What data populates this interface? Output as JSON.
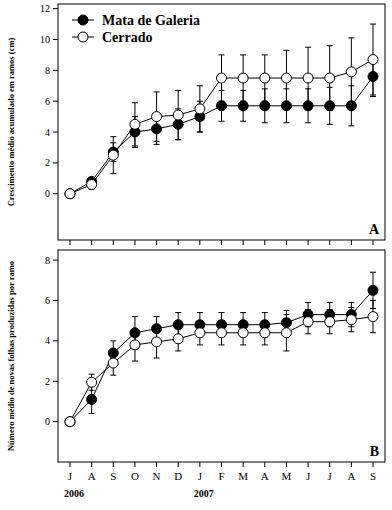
{
  "chart_data": [
    {
      "type": "line",
      "y_label": "Crescimento médio acumulado em ramos (cm)",
      "panel_label": "A",
      "categories": [
        "J",
        "A",
        "S",
        "O",
        "N",
        "D",
        "J",
        "F",
        "M",
        "A",
        "M",
        "J",
        "J",
        "A",
        "S"
      ],
      "series": [
        {
          "name": "Mata de Galeria",
          "color": "#000000",
          "marker": "circle",
          "values": [
            0,
            0.8,
            2.7,
            4.0,
            4.2,
            4.5,
            5.0,
            5.7,
            5.7,
            5.7,
            5.7,
            5.7,
            5.7,
            5.7,
            7.6
          ],
          "errors": [
            0,
            0.2,
            0.6,
            1.0,
            1.0,
            1.0,
            1.0,
            1.0,
            1.0,
            1.1,
            1.1,
            1.1,
            1.2,
            1.3,
            1.3
          ]
        },
        {
          "name": "Cerrado",
          "color": "#ffffff",
          "marker": "circle",
          "values": [
            0,
            0.6,
            2.5,
            4.5,
            5.0,
            5.1,
            5.5,
            7.5,
            7.5,
            7.5,
            7.5,
            7.5,
            7.5,
            7.9,
            8.7
          ],
          "errors": [
            0,
            0.3,
            1.2,
            1.4,
            1.6,
            1.6,
            1.5,
            1.5,
            1.5,
            1.5,
            1.8,
            2.0,
            2.1,
            2.2,
            2.3
          ]
        }
      ],
      "ylim": [
        -3,
        12.3
      ],
      "yticks": [
        0,
        2,
        4,
        6,
        8,
        10,
        12
      ],
      "grid": false,
      "legend": "top-left",
      "tick_labels": "y"
    },
    {
      "type": "line",
      "y_label": "Número médio de novas folhas produzidas por ramo",
      "panel_label": "B",
      "categories": [
        "J",
        "A",
        "S",
        "O",
        "N",
        "D",
        "J",
        "F",
        "M",
        "A",
        "M",
        "J",
        "J",
        "A",
        "S"
      ],
      "annotations": [
        {
          "text": "2006",
          "category": 0
        },
        {
          "text": "2007",
          "category": 6
        }
      ],
      "series": [
        {
          "name": "Mata de Galeria",
          "color": "#000000",
          "marker": "circle",
          "values": [
            0,
            1.1,
            3.4,
            4.4,
            4.6,
            4.8,
            4.8,
            4.8,
            4.8,
            4.8,
            4.9,
            5.3,
            5.3,
            5.3,
            6.5
          ],
          "errors": [
            0,
            0.7,
            0.6,
            0.8,
            0.6,
            0.6,
            0.6,
            0.6,
            0.6,
            0.6,
            0.6,
            0.6,
            0.6,
            0.6,
            0.9
          ]
        },
        {
          "name": "Cerrado",
          "color": "#ffffff",
          "marker": "circle",
          "values": [
            0,
            1.95,
            2.9,
            3.8,
            3.95,
            4.1,
            4.4,
            4.4,
            4.4,
            4.4,
            4.4,
            4.95,
            4.95,
            5.05,
            5.2
          ],
          "errors": [
            0,
            0.4,
            0.6,
            0.8,
            0.8,
            0.6,
            0.6,
            0.6,
            0.6,
            0.6,
            0.9,
            0.6,
            0.6,
            0.6,
            0.8
          ]
        }
      ],
      "ylim": [
        -2,
        8.5
      ],
      "yticks": [
        0,
        2,
        4,
        6,
        8
      ],
      "grid": false
    }
  ]
}
